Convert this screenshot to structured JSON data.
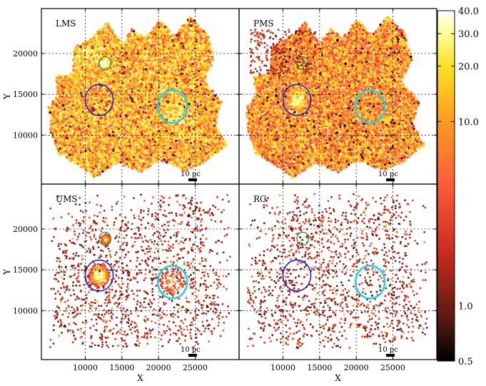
{
  "chart_data": {
    "type": "scatter",
    "xlabel": "X",
    "ylabel": "Y",
    "xlim": [
      4000,
      31000
    ],
    "ylim": [
      4000,
      25500
    ],
    "x_ticks": [
      10000,
      15000,
      20000,
      25000
    ],
    "x_tick_labels": [
      "10000",
      "15000",
      "20000",
      "25000"
    ],
    "y_ticks": [
      10000,
      15000,
      20000
    ],
    "y_tick_labels": [
      "10000",
      "15000",
      "20000"
    ],
    "grid": true,
    "colorbar": {
      "scale": "log",
      "range": [
        0.5,
        40.0
      ],
      "ticks": [
        0.5,
        1.0,
        10.0,
        20.0,
        30.0,
        40.0
      ],
      "tick_labels": [
        "0.5",
        "1.0",
        "10.0",
        "20.0",
        "30.0",
        "40.0"
      ],
      "colormap": [
        "#000000",
        "#5a1a12",
        "#c42a1c",
        "#ff5a3a",
        "#ff9a1e",
        "#ffe024",
        "#ffff9a",
        "#ffffff"
      ]
    },
    "scale_bar_label": "10 pc",
    "circles": [
      {
        "name": "green",
        "color": "#2e8b2e",
        "cx": 12700,
        "cy": 18800,
        "r": 800
      },
      {
        "name": "blue",
        "color": "#1f1fcc",
        "cx": 11900,
        "cy": 14300,
        "r": 1900
      },
      {
        "name": "cyan",
        "color": "#25d4e0",
        "cx": 21900,
        "cy": 13500,
        "r": 2000
      }
    ],
    "panels": [
      {
        "label": "LMS",
        "kind": "dense",
        "base_level": 0.62,
        "show_xticks": false,
        "show_yticks": true,
        "hotspots": [
          {
            "x": 12700,
            "y": 18800,
            "r": 700,
            "amp": 0.3
          },
          {
            "x": 22500,
            "y": 12500,
            "r": 1500,
            "amp": 0.15
          },
          {
            "x": 10200,
            "y": 19800,
            "r": 1800,
            "amp": 0.12
          }
        ]
      },
      {
        "label": "PMS",
        "kind": "dense",
        "base_level": 0.55,
        "show_xticks": false,
        "show_yticks": false,
        "hotspots": [
          {
            "x": 12000,
            "y": 14400,
            "r": 900,
            "amp": 0.4
          },
          {
            "x": 12700,
            "y": 18800,
            "r": 600,
            "amp": 0.2
          }
        ]
      },
      {
        "label": "UMS",
        "kind": "sparse",
        "base_level": 0.12,
        "show_xticks": true,
        "show_yticks": true,
        "hotspots": [
          {
            "x": 11900,
            "y": 14300,
            "r": 1100,
            "amp": 0.75
          },
          {
            "x": 12800,
            "y": 18700,
            "r": 450,
            "amp": 0.6
          },
          {
            "x": 21800,
            "y": 13600,
            "r": 1300,
            "amp": 0.3
          }
        ]
      },
      {
        "label": "RC",
        "kind": "sparse",
        "base_level": 0.12,
        "show_xticks": true,
        "show_yticks": false,
        "hotspots": []
      }
    ]
  }
}
